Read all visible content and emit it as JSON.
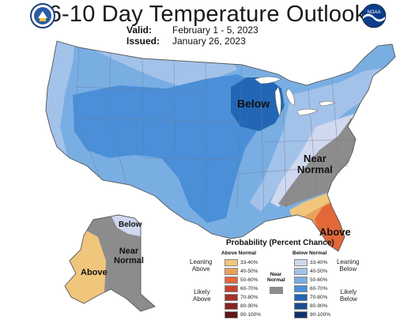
{
  "title": "6-10 Day Temperature Outlook",
  "valid_label": "Valid:",
  "valid_dates": "February 1 - 5, 2023",
  "issued_label": "Issued:",
  "issued_date": "January 26, 2023",
  "logos": {
    "left": "doc-seal",
    "right": "noaa-logo",
    "right_text": "NOAA"
  },
  "map_labels": {
    "below_midwest": "Below",
    "near_normal_east_1": "Near",
    "near_normal_east_2": "Normal",
    "above_florida": "Above",
    "alaska_below": "Below",
    "alaska_near_1": "Near",
    "alaska_near_2": "Normal",
    "alaska_above": "Above"
  },
  "legend": {
    "title": "Probability (Percent Chance)",
    "above_header": "Above Normal",
    "below_header": "Below Normal",
    "near_normal_1": "Near",
    "near_normal_2": "Normal",
    "leaning_above_1": "Leaning",
    "leaning_above_2": "Above",
    "likely_above_1": "Likely",
    "likely_above_2": "Above",
    "leaning_below_1": "Leaning",
    "leaning_below_2": "Below",
    "likely_below_1": "Likely",
    "likely_below_2": "Below",
    "above_ranges": [
      "33-40%",
      "40-50%",
      "50-60%",
      "60-70%",
      "70-80%",
      "80-90%",
      "90-100%"
    ],
    "below_ranges": [
      "33-40%",
      "40-50%",
      "50-60%",
      "60-70%",
      "70-80%",
      "80-90%",
      "90-100%"
    ]
  },
  "colors": {
    "above": [
      "#f0c67d",
      "#eaa15c",
      "#e2683a",
      "#c8412d",
      "#a8312b",
      "#8a2424",
      "#5f1616"
    ],
    "below": [
      "#cfd8ee",
      "#a3c2e9",
      "#79aee3",
      "#4a8fd8",
      "#2266b5",
      "#1a4c8e",
      "#12306a"
    ],
    "near": "#8c8c8c"
  }
}
